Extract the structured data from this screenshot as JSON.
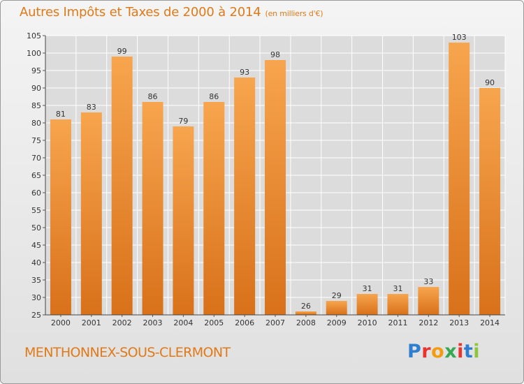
{
  "header": {
    "title": "Autres Impôts et Taxes de 2000 à 2014",
    "unit": "(en milliers d'€)"
  },
  "footer": {
    "commune": "MENTHONNEX-SOUS-CLERMONT",
    "logo": [
      "P",
      "r",
      "o",
      "x",
      "i",
      "t",
      "i"
    ]
  },
  "colors": {
    "title": "#e07a18",
    "bar_light": "#f7a54e",
    "bar_dark": "#d8711a",
    "grid": "#ffffff",
    "logo": [
      "#2f7fd1",
      "#e8332e",
      "#f39c12",
      "#36a852",
      "#e8332e",
      "#2f7fd1",
      "#8cc63f"
    ]
  },
  "chart_data": {
    "type": "bar",
    "title": "Autres Impôts et Taxes de 2000 à 2014",
    "subtitle": "(en milliers d'€)",
    "xlabel": "",
    "ylabel": "",
    "categories": [
      "2000",
      "2001",
      "2002",
      "2003",
      "2004",
      "2005",
      "2006",
      "2007",
      "2008",
      "2009",
      "2010",
      "2011",
      "2012",
      "2013",
      "2014"
    ],
    "values": [
      81,
      83,
      99,
      86,
      79,
      86,
      93,
      98,
      26,
      29,
      31,
      31,
      33,
      103,
      90
    ],
    "ylim": [
      25,
      105
    ],
    "yticks": [
      25,
      30,
      35,
      40,
      45,
      50,
      55,
      60,
      65,
      70,
      75,
      80,
      85,
      90,
      95,
      100,
      105
    ],
    "grid": true,
    "legend": "none"
  }
}
